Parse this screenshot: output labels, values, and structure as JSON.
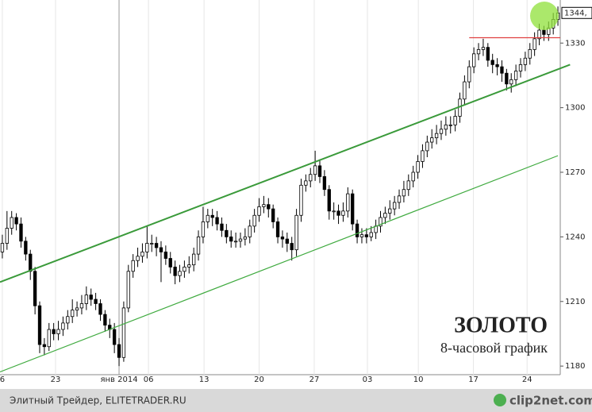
{
  "chart_data": {
    "type": "candlestick",
    "title": "ЗОЛОТО",
    "subtitle": "8-часовой график",
    "x": [
      0,
      1,
      2,
      3,
      4,
      5,
      6,
      7,
      8,
      9,
      10,
      11,
      12,
      13,
      14,
      15,
      16,
      17,
      18,
      19,
      20,
      21,
      22,
      23,
      24,
      25,
      26,
      27,
      28,
      29,
      30,
      31,
      32,
      33,
      34,
      35,
      36,
      37,
      38,
      39,
      40,
      41,
      42,
      43,
      44,
      45,
      46,
      47,
      48,
      49,
      50,
      51,
      52,
      53,
      54,
      55,
      56,
      57,
      58,
      59,
      60,
      61,
      62,
      63,
      64,
      65,
      66,
      67,
      68,
      69,
      70,
      71,
      72,
      73,
      74,
      75,
      76,
      77,
      78,
      79,
      80,
      81,
      82,
      83,
      84,
      85,
      86,
      87,
      88,
      89,
      90,
      91,
      92,
      93,
      94,
      95,
      96,
      97,
      98,
      99,
      100,
      101,
      102,
      103,
      104,
      105,
      106,
      107,
      108,
      109,
      110,
      111,
      112,
      113,
      114,
      115,
      116,
      117,
      118,
      119
    ],
    "open": [
      1233,
      1237,
      1244,
      1249,
      1246,
      1238,
      1232,
      1224,
      1208,
      1190,
      1189,
      1197,
      1195,
      1197,
      1200,
      1203,
      1206,
      1207,
      1209,
      1213,
      1211,
      1209,
      1204,
      1199,
      1197,
      1190,
      1184,
      1207,
      1224,
      1229,
      1231,
      1233,
      1237,
      1237,
      1235,
      1233,
      1230,
      1226,
      1222,
      1224,
      1226,
      1227,
      1232,
      1240,
      1247,
      1250,
      1249,
      1246,
      1243,
      1240,
      1238,
      1238,
      1239,
      1240,
      1245,
      1250,
      1254,
      1255,
      1253,
      1247,
      1240,
      1239,
      1237,
      1234,
      1250,
      1264,
      1266,
      1269,
      1273,
      1268,
      1262,
      1252,
      1252,
      1250,
      1252,
      1260,
      1246,
      1240,
      1241,
      1240,
      1242,
      1245,
      1249,
      1251,
      1253,
      1256,
      1259,
      1262,
      1266,
      1270,
      1275,
      1280,
      1284,
      1286,
      1288,
      1290,
      1292,
      1292,
      1296,
      1304,
      1312,
      1319,
      1325,
      1327,
      1328,
      1322,
      1320,
      1319,
      1316,
      1311,
      1313,
      1317,
      1320,
      1323,
      1327,
      1332,
      1336,
      1334,
      1337,
      1341
    ],
    "high": [
      1241,
      1252,
      1252,
      1251,
      1249,
      1240,
      1234,
      1226,
      1210,
      1193,
      1200,
      1200,
      1201,
      1203,
      1206,
      1211,
      1210,
      1213,
      1217,
      1216,
      1214,
      1211,
      1206,
      1202,
      1200,
      1193,
      1210,
      1227,
      1232,
      1235,
      1237,
      1245,
      1241,
      1240,
      1238,
      1236,
      1233,
      1229,
      1227,
      1229,
      1231,
      1235,
      1243,
      1254,
      1253,
      1253,
      1252,
      1249,
      1246,
      1243,
      1242,
      1242,
      1244,
      1248,
      1253,
      1258,
      1259,
      1258,
      1255,
      1249,
      1243,
      1242,
      1240,
      1253,
      1267,
      1269,
      1272,
      1280,
      1276,
      1271,
      1264,
      1256,
      1255,
      1256,
      1263,
      1262,
      1248,
      1244,
      1244,
      1245,
      1248,
      1252,
      1254,
      1257,
      1259,
      1262,
      1266,
      1269,
      1273,
      1278,
      1283,
      1287,
      1290,
      1292,
      1294,
      1296,
      1296,
      1299,
      1307,
      1315,
      1322,
      1328,
      1330,
      1332,
      1330,
      1325,
      1323,
      1322,
      1318,
      1316,
      1320,
      1323,
      1326,
      1330,
      1335,
      1339,
      1338,
      1340,
      1344,
      1347
    ],
    "low": [
      1230,
      1234,
      1241,
      1243,
      1235,
      1229,
      1220,
      1204,
      1186,
      1185,
      1187,
      1192,
      1192,
      1194,
      1197,
      1200,
      1203,
      1204,
      1206,
      1208,
      1206,
      1201,
      1196,
      1193,
      1186,
      1180,
      1182,
      1205,
      1221,
      1226,
      1228,
      1230,
      1233,
      1231,
      1219,
      1227,
      1223,
      1218,
      1219,
      1221,
      1223,
      1224,
      1229,
      1237,
      1244,
      1245,
      1243,
      1240,
      1237,
      1235,
      1235,
      1235,
      1236,
      1237,
      1242,
      1247,
      1251,
      1249,
      1244,
      1237,
      1235,
      1233,
      1229,
      1231,
      1247,
      1261,
      1263,
      1266,
      1265,
      1259,
      1248,
      1248,
      1246,
      1247,
      1249,
      1243,
      1237,
      1237,
      1237,
      1238,
      1239,
      1242,
      1246,
      1248,
      1250,
      1253,
      1256,
      1259,
      1263,
      1267,
      1272,
      1277,
      1281,
      1283,
      1285,
      1287,
      1288,
      1289,
      1293,
      1301,
      1309,
      1316,
      1322,
      1324,
      1319,
      1316,
      1315,
      1312,
      1308,
      1307,
      1310,
      1314,
      1317,
      1320,
      1324,
      1329,
      1331,
      1331,
      1334,
      1338
    ],
    "close": [
      1237,
      1244,
      1249,
      1246,
      1238,
      1232,
      1224,
      1208,
      1190,
      1189,
      1197,
      1195,
      1197,
      1200,
      1203,
      1206,
      1207,
      1209,
      1213,
      1211,
      1209,
      1204,
      1199,
      1197,
      1190,
      1184,
      1207,
      1224,
      1229,
      1231,
      1233,
      1237,
      1237,
      1235,
      1233,
      1230,
      1226,
      1222,
      1224,
      1226,
      1227,
      1232,
      1240,
      1247,
      1250,
      1249,
      1246,
      1243,
      1240,
      1238,
      1238,
      1239,
      1240,
      1245,
      1250,
      1254,
      1255,
      1253,
      1247,
      1240,
      1239,
      1237,
      1234,
      1250,
      1264,
      1266,
      1269,
      1273,
      1268,
      1262,
      1252,
      1252,
      1250,
      1252,
      1260,
      1246,
      1240,
      1241,
      1240,
      1242,
      1245,
      1249,
      1251,
      1253,
      1256,
      1259,
      1262,
      1266,
      1270,
      1275,
      1280,
      1284,
      1286,
      1288,
      1290,
      1292,
      1292,
      1296,
      1304,
      1312,
      1319,
      1325,
      1327,
      1328,
      1322,
      1320,
      1319,
      1316,
      1311,
      1313,
      1317,
      1320,
      1323,
      1327,
      1332,
      1336,
      1334,
      1337,
      1341,
      1344
    ],
    "up_color": "#ffffff",
    "down_color": "#000000",
    "xlim": [
      -0.5,
      119.5
    ],
    "xticks": [
      {
        "value": 0,
        "label": "6"
      },
      {
        "value": 11.4,
        "label": "23"
      },
      {
        "value": 25,
        "label": "янв 2014"
      },
      {
        "value": 31.3,
        "label": "06"
      },
      {
        "value": 43.2,
        "label": "13"
      },
      {
        "value": 55,
        "label": "20"
      },
      {
        "value": 66.8,
        "label": "27"
      },
      {
        "value": 78.2,
        "label": "03"
      },
      {
        "value": 89.1,
        "label": "10"
      },
      {
        "value": 100.9,
        "label": "17"
      },
      {
        "value": 112.4,
        "label": "24"
      }
    ],
    "ylim": [
      1176,
      1350
    ],
    "yticks": [
      1180,
      1210,
      1240,
      1270,
      1300,
      1330
    ],
    "last_label": "1344,",
    "trend_lines": [
      {
        "color": "#3a9a3a",
        "x": [
          -0.5,
          121.6
        ],
        "y": [
          1219,
          1320
        ]
      },
      {
        "color": "#3faa3f",
        "x": [
          -0.5,
          119
        ],
        "y": [
          1177.3,
          1277.7
        ]
      },
      {
        "color": "#e04040",
        "x": [
          100,
          119.5
        ],
        "y": [
          1332.5,
          1332.5
        ]
      }
    ]
  },
  "footer": {
    "left": "Элитный Трейдер, ELITETRADER.RU",
    "right": "clip2net.com"
  }
}
